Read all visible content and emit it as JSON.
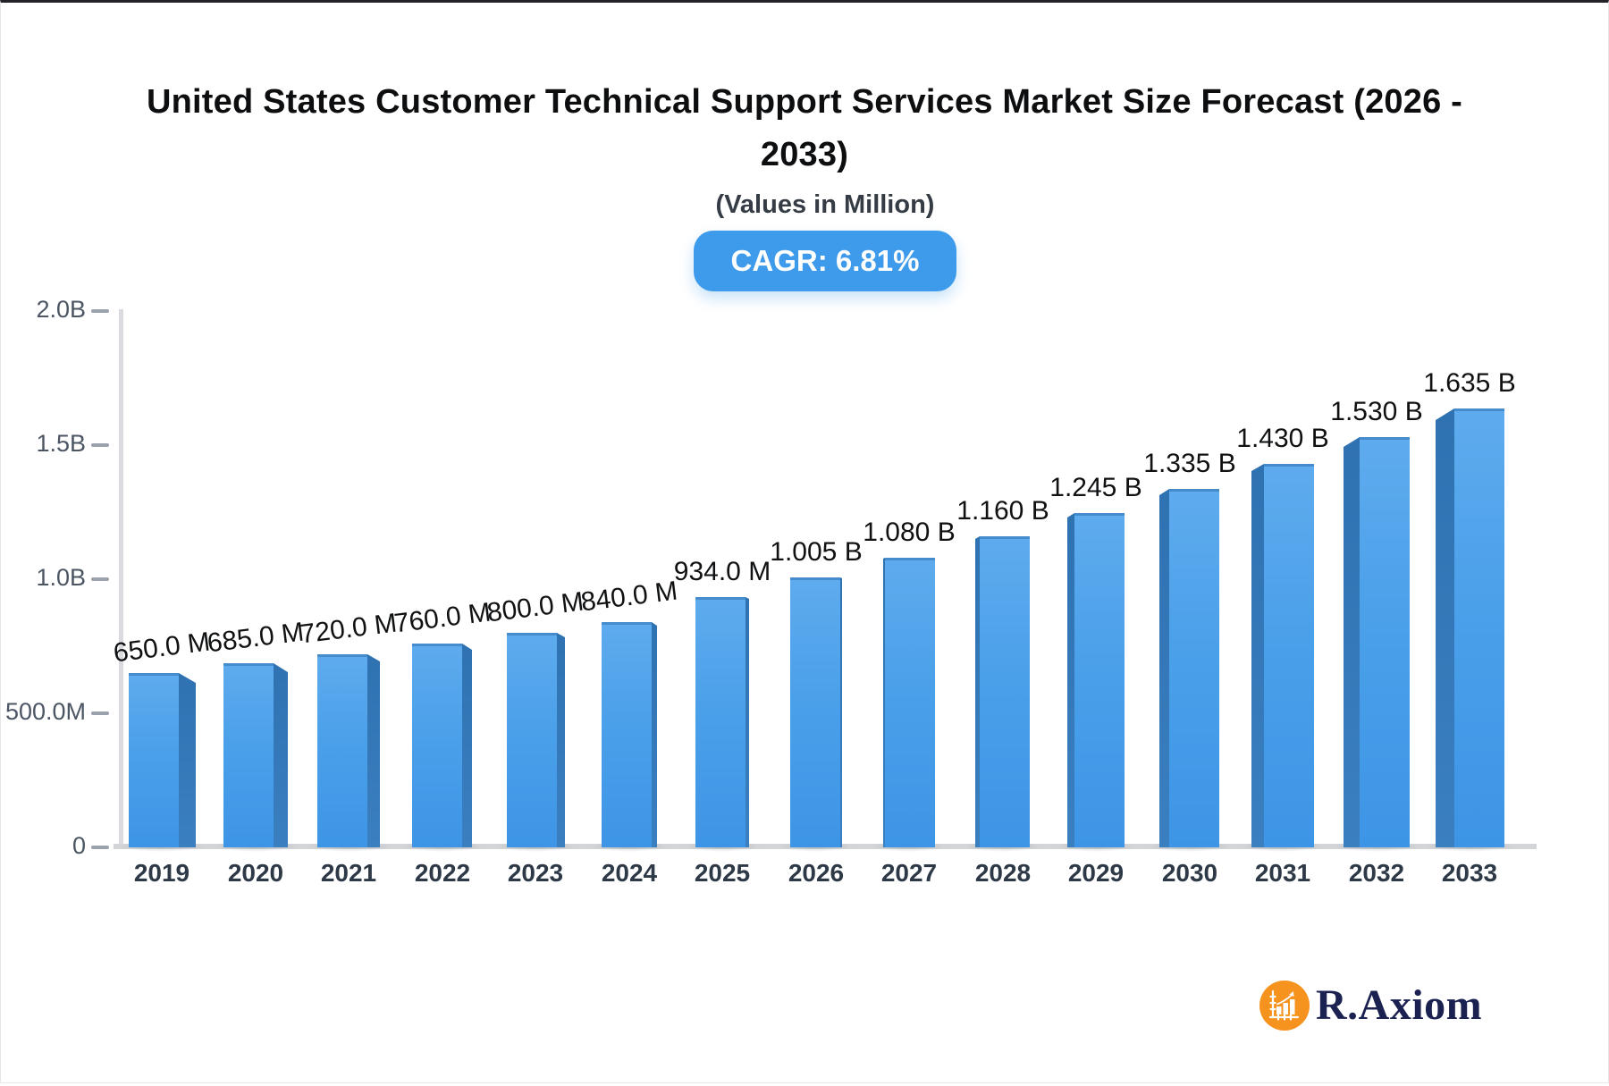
{
  "header": {
    "title": "United States Customer Technical Support Services Market Size Forecast (2026 - 2033)",
    "subtitle": "(Values in Million)",
    "cagr_badge": "CAGR: 6.81%"
  },
  "brand": {
    "name": "R.Axiom",
    "icon": "bar-chart-growth-icon"
  },
  "colors": {
    "badge_blue": "#3e9aea",
    "bar_face_top": "#5fabee",
    "bar_face_bottom": "#3e95e6",
    "bar_side": "#3075b5",
    "axis_line": "#d5d7da",
    "tick": "#9aa3ad",
    "y_label": "#4b5563",
    "year_label": "#2e3947",
    "value_label": "#0f1113",
    "title": "#0d0e10",
    "brand_orange": "#f6921e",
    "brand_navy": "#1b2150"
  },
  "chart_data": {
    "type": "bar",
    "title": "United States Customer Technical Support Services Market Size Forecast (2026 - 2033)",
    "subtitle": "(Values in Million)",
    "cagr_percent": 6.81,
    "categories": [
      "2019",
      "2020",
      "2021",
      "2022",
      "2023",
      "2024",
      "2025",
      "2026",
      "2027",
      "2028",
      "2029",
      "2030",
      "2031",
      "2032",
      "2033"
    ],
    "values_millions": [
      650,
      685,
      720,
      760,
      800,
      840,
      934,
      1005,
      1080,
      1160,
      1245,
      1335,
      1430,
      1530,
      1635
    ],
    "value_labels": [
      "650.0 M",
      "685.0 M",
      "720.0 M",
      "760.0 M",
      "800.0 M",
      "840.0 M",
      "934.0 M",
      "1.005 B",
      "1.080 B",
      "1.160 B",
      "1.245 B",
      "1.335 B",
      "1.430 B",
      "1.530 B",
      "1.635 B"
    ],
    "y_ticks": [
      {
        "label": "2.0B",
        "value_millions": 2000
      },
      {
        "label": "1.5B",
        "value_millions": 1500
      },
      {
        "label": "1.0B",
        "value_millions": 1000
      },
      {
        "label": "500.0M",
        "value_millions": 500
      },
      {
        "label": "0",
        "value_millions": 0
      }
    ],
    "ylim_millions": [
      0,
      2000
    ],
    "grid": false,
    "legend": "none",
    "style": "3d-perspective-bars"
  }
}
